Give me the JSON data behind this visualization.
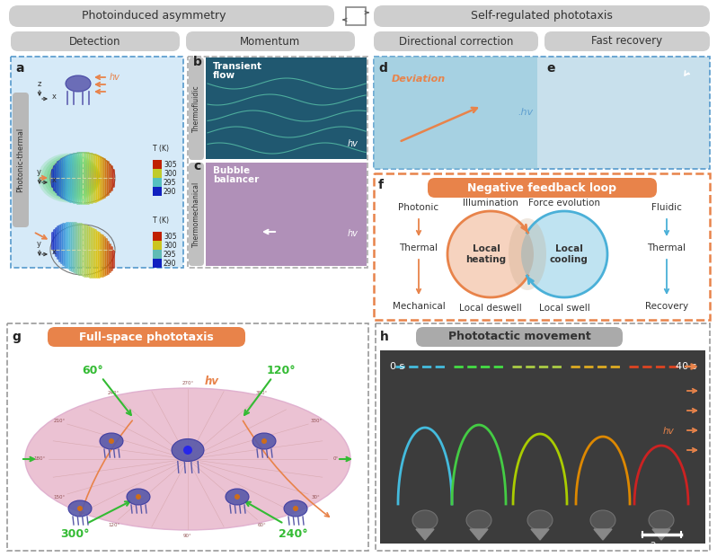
{
  "bg_color": "#ffffff",
  "header_bg": "#d0d0d0",
  "header_left": "Photoinduced asymmetry",
  "header_right": "Self-regulated phototaxis",
  "sub_headers": [
    "Detection",
    "Momentum",
    "Directional correction",
    "Fast recovery"
  ],
  "panel_a_bg": "#d6eaf8",
  "panel_f_border": "#e8834a",
  "orange": "#e8834a",
  "blue": "#4ab0d8",
  "green": "#66bb66",
  "purple": "#7b5ea7",
  "pink": "#e8b4c8",
  "feedback_title": "Negative feedback loop",
  "feedback_title_bg": "#e8834a",
  "feedback_left_labels": [
    "Photonic",
    "Thermal",
    "Mechanical"
  ],
  "feedback_right_labels": [
    "Fluidic",
    "Thermal",
    "Recovery"
  ],
  "feedback_center_top": [
    "Illumination",
    "Force evolution"
  ],
  "feedback_center_mid": [
    "Local heating",
    "Local cooling"
  ],
  "feedback_center_bot": [
    "Local deswell",
    "Local swell"
  ],
  "panel_g_title": "Full-space phototaxis",
  "panel_h_title": "Phototactic movement",
  "side_label_photonic": "Photonic-thermal",
  "side_label_bc_top": "Thermofluidic",
  "side_label_bc_bot": "Thermomechanical",
  "panel_b_text": "Transient\nflow",
  "panel_c_text": "Bubble\nbalancer",
  "panel_d_text": "Deviation",
  "angles": [
    "60°",
    "120°",
    "300°",
    "240°"
  ],
  "hv": "hv"
}
